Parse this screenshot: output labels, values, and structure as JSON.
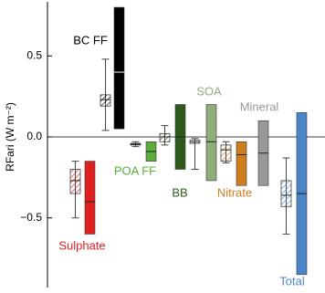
{
  "chart_data": {
    "type": "boxbar",
    "y_label": "RFari (W m⁻²)",
    "ylim": [
      -0.93,
      0.82
    ],
    "yticks": [
      0.5,
      {
        "value": 0,
        "label": "0.0"
      },
      {
        "value": -0.5,
        "label": "−0.5"
      }
    ],
    "series": [
      {
        "name": "Sulphate",
        "color": "#e02020",
        "model": {
          "whisker_low": -0.5,
          "q1": -0.35,
          "median": -0.27,
          "q3": -0.2,
          "whisker_high": -0.15
        },
        "estimate": {
          "low": -0.6,
          "median": -0.4,
          "high": -0.15
        }
      },
      {
        "name": "BC FF",
        "color": "#000000",
        "model": {
          "whisker_low": 0.04,
          "q1": 0.19,
          "median": 0.23,
          "q3": 0.26,
          "whisker_high": 0.48
        },
        "estimate": {
          "low": 0.05,
          "median": 0.4,
          "high": 0.8
        }
      },
      {
        "name": "POA FF",
        "color": "#5aad3a",
        "model": {
          "whisker_low": -0.06,
          "q1": -0.05,
          "median": -0.045,
          "q3": -0.04,
          "whisker_high": -0.03
        },
        "estimate": {
          "low": -0.15,
          "median": -0.09,
          "high": -0.03
        }
      },
      {
        "name": "BB",
        "color": "#2d5a1b",
        "model": {
          "whisker_low": -0.05,
          "q1": -0.03,
          "median": 0.0,
          "q3": 0.02,
          "whisker_high": 0.07
        },
        "estimate": {
          "low": -0.2,
          "median": 0.0,
          "high": 0.2
        }
      },
      {
        "name": "SOA",
        "color": "#8fae7c",
        "model": {
          "whisker_low": -0.2,
          "q1": -0.04,
          "median": -0.03,
          "q3": -0.02,
          "whisker_high": -0.01
        },
        "estimate": {
          "low": -0.27,
          "median": -0.03,
          "high": 0.2
        }
      },
      {
        "name": "Nitrate",
        "color": "#d07d1e",
        "model": {
          "whisker_low": -0.16,
          "q1": -0.15,
          "median": -0.08,
          "q3": -0.05,
          "whisker_high": -0.03
        },
        "estimate": {
          "low": -0.3,
          "median": -0.11,
          "high": -0.03
        }
      },
      {
        "name": "Mineral",
        "color": "#999999",
        "model": null,
        "estimate": {
          "low": -0.3,
          "median": -0.1,
          "high": 0.1
        }
      },
      {
        "name": "Total",
        "color": "#4a86c8",
        "model": {
          "whisker_low": -0.6,
          "q1": -0.43,
          "median": -0.36,
          "q3": -0.27,
          "whisker_high": -0.13
        },
        "estimate": {
          "low": -0.85,
          "median": -0.35,
          "high": 0.15
        }
      }
    ]
  }
}
